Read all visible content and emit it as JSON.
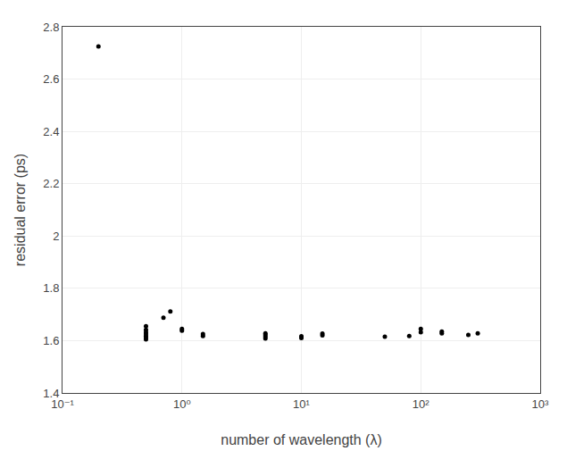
{
  "chart_data": {
    "type": "scatter",
    "xlabel": "number of wavelength (λ)",
    "ylabel": "residual error (ps)",
    "log": "x",
    "grid": true,
    "color": "#000000",
    "x": [
      0.2,
      0.5,
      0.5,
      0.5,
      0.5,
      0.5,
      0.5,
      0.5,
      0.7,
      0.8,
      1.0,
      1.0,
      1.5,
      1.5,
      5.0,
      5.0,
      5.0,
      5.0,
      10.0,
      10.0,
      15.0,
      15.0,
      50.0,
      80.0,
      100.0,
      100.0,
      150.0,
      150.0,
      250.0,
      300.0
    ],
    "values": [
      2.725,
      1.605,
      1.612,
      1.618,
      1.625,
      1.632,
      1.642,
      1.655,
      1.688,
      1.712,
      1.638,
      1.645,
      1.618,
      1.625,
      1.608,
      1.615,
      1.622,
      1.628,
      1.61,
      1.617,
      1.62,
      1.627,
      1.615,
      1.618,
      1.632,
      1.645,
      1.628,
      1.635,
      1.622,
      1.628
    ],
    "xlim": [
      0.1,
      1000
    ],
    "ylim": [
      1.4,
      2.8
    ],
    "xticks": [
      {
        "value": 0.1,
        "label": "10⁻¹"
      },
      {
        "value": 1,
        "label": "10⁰"
      },
      {
        "value": 10,
        "label": "10¹"
      },
      {
        "value": 100,
        "label": "10²"
      },
      {
        "value": 1000,
        "label": "10³"
      }
    ],
    "yticks": [
      1.4,
      1.6,
      1.8,
      2,
      2.2,
      2.4,
      2.6,
      2.8
    ]
  }
}
